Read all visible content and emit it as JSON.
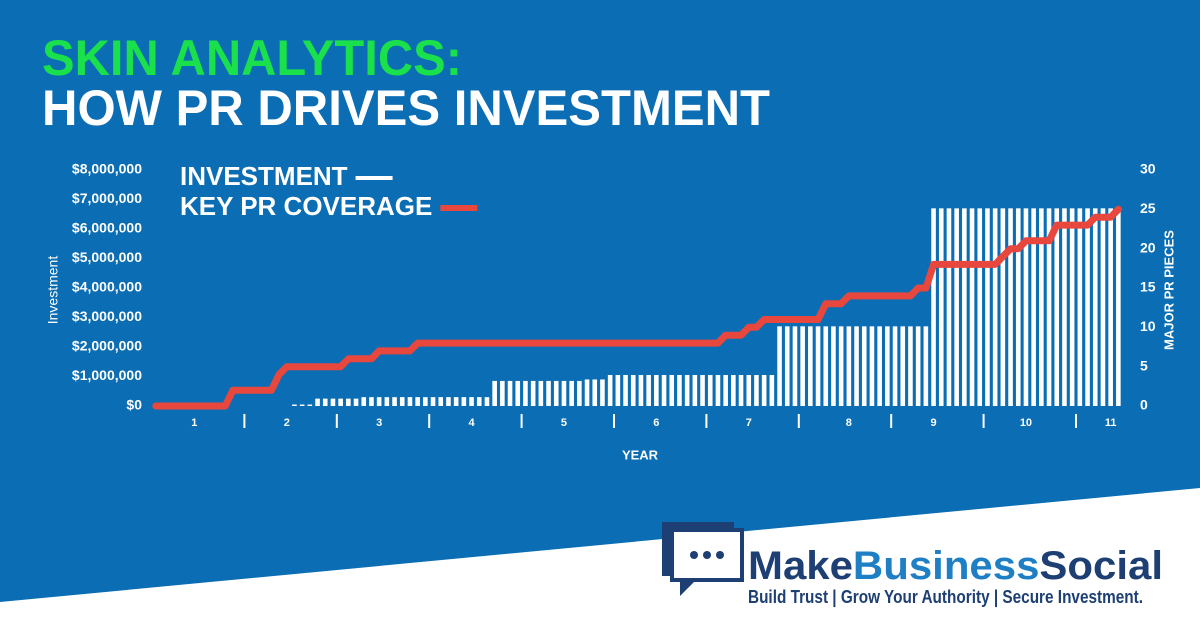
{
  "chart_data": {
    "type": "bar",
    "title": "SKIN ANALYTICS:",
    "subtitle": "HOW PR DRIVES INVESTMENT",
    "x_label": "YEAR",
    "y_label": "Investment",
    "y2_label": "MAJOR PR PIECES",
    "categories": [
      null,
      null,
      null,
      null,
      null,
      "1",
      null,
      null,
      null,
      null,
      null,
      null,
      null,
      null,
      null,
      null,
      null,
      "2",
      null,
      null,
      null,
      null,
      null,
      null,
      null,
      null,
      null,
      null,
      null,
      "3",
      null,
      null,
      null,
      null,
      null,
      null,
      null,
      null,
      null,
      null,
      null,
      "4",
      null,
      null,
      null,
      null,
      null,
      null,
      null,
      null,
      null,
      null,
      null,
      "5",
      null,
      null,
      null,
      null,
      null,
      null,
      null,
      null,
      null,
      null,
      null,
      "6",
      null,
      null,
      null,
      null,
      null,
      null,
      null,
      null,
      null,
      null,
      null,
      "7",
      null,
      null,
      null,
      null,
      null,
      null,
      null,
      null,
      null,
      null,
      null,
      null,
      "8",
      null,
      null,
      null,
      null,
      null,
      null,
      null,
      null,
      null,
      null,
      "9",
      null,
      null,
      null,
      null,
      null,
      null,
      null,
      null,
      null,
      null,
      null,
      "10",
      null,
      null,
      null,
      null,
      null,
      null,
      null,
      null,
      null,
      null,
      "11",
      null
    ],
    "series": [
      {
        "name": "INVESTMENT",
        "color": "#ffffff",
        "values": [
          0,
          0,
          0,
          0,
          0,
          0,
          0,
          0,
          0,
          0,
          0,
          0,
          0,
          0,
          0,
          0,
          0,
          0,
          50000,
          50000,
          50000,
          250000,
          250000,
          250000,
          250000,
          250000,
          250000,
          300000,
          300000,
          300000,
          300000,
          300000,
          300000,
          300000,
          300000,
          300000,
          300000,
          300000,
          300000,
          300000,
          300000,
          300000,
          300000,
          300000,
          850000,
          850000,
          850000,
          850000,
          850000,
          850000,
          850000,
          850000,
          850000,
          850000,
          850000,
          850000,
          900000,
          900000,
          900000,
          1050000,
          1050000,
          1050000,
          1050000,
          1050000,
          1050000,
          1050000,
          1050000,
          1050000,
          1050000,
          1050000,
          1050000,
          1050000,
          1050000,
          1050000,
          1050000,
          1050000,
          1050000,
          1050000,
          1050000,
          1050000,
          1050000,
          2700000,
          2700000,
          2700000,
          2700000,
          2700000,
          2700000,
          2700000,
          2700000,
          2700000,
          2700000,
          2700000,
          2700000,
          2700000,
          2700000,
          2700000,
          2700000,
          2700000,
          2700000,
          2700000,
          2700000,
          6700000,
          6700000,
          6700000,
          6700000,
          6700000,
          6700000,
          6700000,
          6700000,
          6700000,
          6700000,
          6700000,
          6700000,
          6700000,
          6700000,
          6700000,
          6700000,
          6700000,
          6700000,
          6700000,
          6700000,
          6700000,
          6700000,
          6700000,
          6700000,
          6700000
        ]
      },
      {
        "name": "KEY PR COVERAGE",
        "color": "#e8473e",
        "type": "line",
        "axis": "y2",
        "values": [
          0,
          0,
          0,
          0,
          0,
          0,
          0,
          0,
          0,
          0,
          2,
          2,
          2,
          2,
          2,
          2,
          4,
          5,
          5,
          5,
          5,
          5,
          5,
          5,
          5,
          6,
          6,
          6,
          6,
          7,
          7,
          7,
          7,
          7,
          8,
          8,
          8,
          8,
          8,
          8,
          8,
          8,
          8,
          8,
          8,
          8,
          8,
          8,
          8,
          8,
          8,
          8,
          8,
          8,
          8,
          8,
          8,
          8,
          8,
          8,
          8,
          8,
          8,
          8,
          8,
          8,
          8,
          8,
          8,
          8,
          8,
          8,
          8,
          8,
          9,
          9,
          9,
          10,
          10,
          11,
          11,
          11,
          11,
          11,
          11,
          11,
          11,
          13,
          13,
          13,
          14,
          14,
          14,
          14,
          14,
          14,
          14,
          14,
          14,
          15,
          15,
          18,
          18,
          18,
          18,
          18,
          18,
          18,
          18,
          18,
          19,
          20,
          20,
          21,
          21,
          21,
          21,
          23,
          23,
          23,
          23,
          23,
          24,
          24,
          24,
          25
        ]
      }
    ],
    "ylim": [
      0,
      8000000
    ],
    "yticks": [
      {
        "value": 0,
        "label": "$0"
      },
      {
        "value": 1000000,
        "label": "$1,000,000"
      },
      {
        "value": 2000000,
        "label": "$2,000,000"
      },
      {
        "value": 3000000,
        "label": "$3,000,000"
      },
      {
        "value": 4000000,
        "label": "$4,000,000"
      },
      {
        "value": 5000000,
        "label": "$5,000,000"
      },
      {
        "value": 6000000,
        "label": "$6,000,000"
      },
      {
        "value": 7000000,
        "label": "$7,000,000"
      },
      {
        "value": 8000000,
        "label": "$8,000,000"
      }
    ],
    "y2lim": [
      0,
      30
    ],
    "y2ticks": [
      0,
      5,
      10,
      15,
      20,
      25,
      30
    ],
    "grid": false,
    "legend": "top-left"
  },
  "branding": {
    "name_parts": [
      "Make",
      "Business",
      "Social"
    ],
    "tagline": "Build Trust | Grow Your Authority | Secure Investment."
  }
}
